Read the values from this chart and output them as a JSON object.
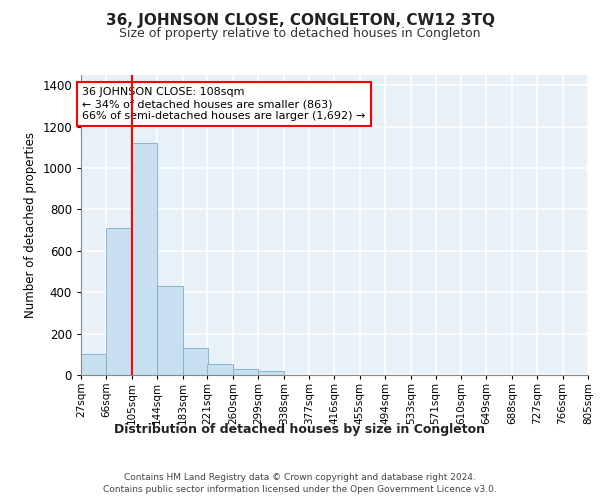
{
  "title": "36, JOHNSON CLOSE, CONGLETON, CW12 3TQ",
  "subtitle": "Size of property relative to detached houses in Congleton",
  "xlabel": "Distribution of detached houses by size in Congleton",
  "ylabel": "Number of detached properties",
  "bar_color": "#c8dff0",
  "bar_edge_color": "#7ab0cc",
  "background_color": "#e8f0f8",
  "grid_color": "#ffffff",
  "annotation_text": "36 JOHNSON CLOSE: 108sqm\n← 34% of detached houses are smaller (863)\n66% of semi-detached houses are larger (1,692) →",
  "vline_x": 105,
  "bins": [
    27,
    66,
    105,
    144,
    183,
    221,
    260,
    299,
    338,
    377,
    416,
    455,
    494,
    533,
    571,
    610,
    649,
    688,
    727,
    766,
    805
  ],
  "bar_heights": [
    100,
    710,
    1120,
    430,
    130,
    55,
    30,
    20,
    0,
    0,
    0,
    0,
    0,
    0,
    0,
    0,
    0,
    0,
    0,
    0
  ],
  "ylim": [
    0,
    1450
  ],
  "yticks": [
    0,
    200,
    400,
    600,
    800,
    1000,
    1200,
    1400
  ],
  "tick_labels": [
    "27sqm",
    "66sqm",
    "105sqm",
    "144sqm",
    "183sqm",
    "221sqm",
    "260sqm",
    "299sqm",
    "338sqm",
    "377sqm",
    "416sqm",
    "455sqm",
    "494sqm",
    "533sqm",
    "571sqm",
    "610sqm",
    "649sqm",
    "688sqm",
    "727sqm",
    "766sqm",
    "805sqm"
  ],
  "footer_line1": "Contains HM Land Registry data © Crown copyright and database right 2024.",
  "footer_line2": "Contains public sector information licensed under the Open Government Licence v3.0.",
  "annotation_box_color": "white",
  "annotation_box_edge": "red",
  "vline_color": "red",
  "title_fontsize": 11,
  "subtitle_fontsize": 9
}
